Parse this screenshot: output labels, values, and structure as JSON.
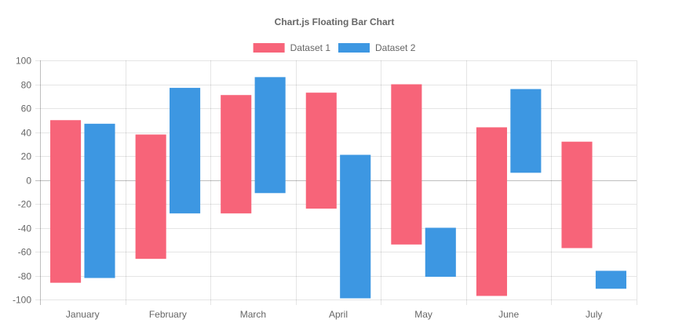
{
  "chart_data": {
    "type": "bar",
    "title": "Chart.js Floating Bar Chart",
    "categories": [
      "January",
      "February",
      "March",
      "April",
      "May",
      "June",
      "July"
    ],
    "series": [
      {
        "name": "Dataset 1",
        "color": "#f76479",
        "ranges": [
          [
            -86,
            50
          ],
          [
            -66,
            38
          ],
          [
            -28,
            71
          ],
          [
            -24,
            73
          ],
          [
            -54,
            80
          ],
          [
            -97,
            44
          ],
          [
            -57,
            32
          ]
        ]
      },
      {
        "name": "Dataset 2",
        "color": "#3d97e2",
        "ranges": [
          [
            -82,
            47
          ],
          [
            -28,
            77
          ],
          [
            -11,
            86
          ],
          [
            -99,
            21
          ],
          [
            -81,
            -40
          ],
          [
            6,
            76
          ],
          [
            -91,
            -76
          ]
        ]
      }
    ],
    "ylim": [
      -100,
      100
    ],
    "yticks": [
      100,
      80,
      60,
      40,
      20,
      0,
      -20,
      -40,
      -60,
      -80,
      -100
    ],
    "grid": true,
    "legend_position": "top"
  }
}
